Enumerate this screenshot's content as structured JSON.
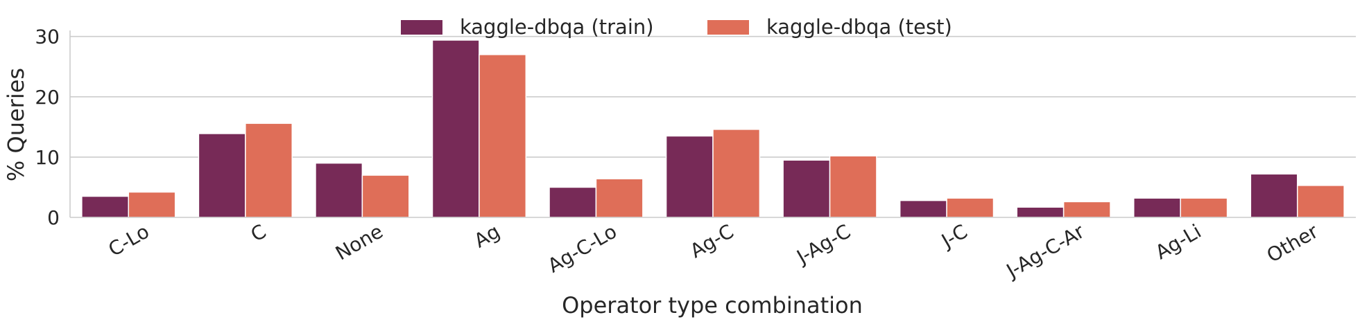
{
  "chart_data": {
    "type": "bar",
    "title": "",
    "xlabel": "Operator type combination",
    "ylabel": "% Queries",
    "ylim": [
      0,
      31
    ],
    "yticks": [
      0,
      10,
      20,
      30
    ],
    "grid": "horizontal",
    "legend_position": "top-center",
    "categories": [
      "C-Lo",
      "C",
      "None",
      "Ag",
      "Ag-C-Lo",
      "Ag-C",
      "J-Ag-C",
      "J-C",
      "J-Ag-C-Ar",
      "Ag-Li",
      "Other"
    ],
    "series": [
      {
        "name": "kaggle-dbqa (train)",
        "color": "#772a57",
        "values": [
          3.5,
          13.9,
          9.0,
          29.4,
          5.0,
          13.5,
          9.5,
          2.8,
          1.7,
          3.2,
          7.2
        ]
      },
      {
        "name": "kaggle-dbqa (test)",
        "color": "#df6e58",
        "values": [
          4.2,
          15.6,
          7.0,
          27.0,
          6.4,
          14.6,
          10.2,
          3.2,
          2.6,
          3.2,
          5.3
        ]
      }
    ]
  }
}
